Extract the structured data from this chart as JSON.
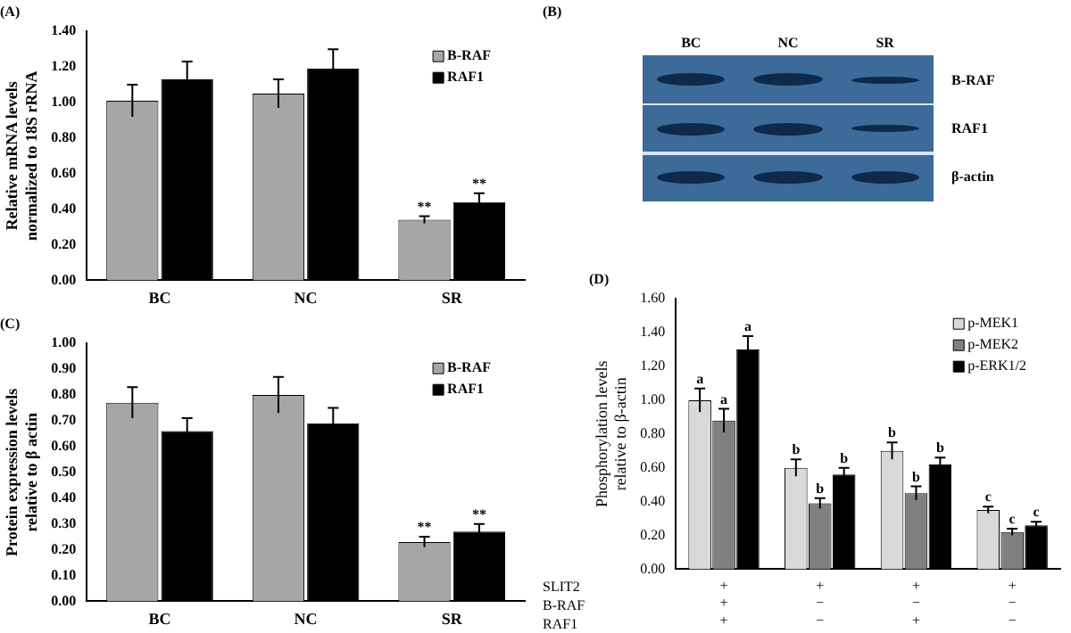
{
  "chart_data": [
    {
      "type": "bar",
      "title": "(A)",
      "ylabel": "Relative mRNA levels\nnormalized to 18S rRNA",
      "categories": [
        "BC",
        "NC",
        "SR"
      ],
      "legend": "top right",
      "ylim": [
        0,
        1.4
      ],
      "yticks": [
        {
          "value": 0,
          "label": "0.00"
        },
        {
          "value": 0.2,
          "label": "0.20"
        },
        {
          "value": 0.4,
          "label": "0.40"
        },
        {
          "value": 0.6,
          "label": "0.60"
        },
        {
          "value": 0.8,
          "label": "0.80"
        },
        {
          "value": 1,
          "label": "1.00"
        },
        {
          "value": 1.2,
          "label": "1.20"
        },
        {
          "value": 1.4,
          "label": "1.40"
        }
      ],
      "series": [
        {
          "name": "B-RAF",
          "color": "#a6a6a6",
          "values": [
            1.01,
            1.05,
            0.34
          ],
          "errors": [
            0.09,
            0.08,
            0.02
          ],
          "value_labels": [
            null,
            null,
            "**"
          ]
        },
        {
          "name": "RAF1",
          "color": "#000000",
          "values": [
            1.13,
            1.19,
            0.44
          ],
          "errors": [
            0.1,
            0.11,
            0.05
          ],
          "value_labels": [
            null,
            null,
            "**"
          ]
        }
      ]
    },
    {
      "type": "other",
      "title": "(B)",
      "categories": [
        "BC",
        "NC",
        "SR"
      ],
      "annotations": [
        "B-RAF",
        "RAF1",
        "β-actin"
      ]
    },
    {
      "type": "bar",
      "title": "(C)",
      "ylabel": "Protein expression levels\nrelative to β actin",
      "categories": [
        "BC",
        "NC",
        "SR"
      ],
      "legend": "top right",
      "ylim": [
        0,
        1
      ],
      "yticks": [
        {
          "value": 0,
          "label": "0.00"
        },
        {
          "value": 0.1,
          "label": "0.10"
        },
        {
          "value": 0.2,
          "label": "0.20"
        },
        {
          "value": 0.3,
          "label": "0.30"
        },
        {
          "value": 0.4,
          "label": "0.40"
        },
        {
          "value": 0.5,
          "label": "0.50"
        },
        {
          "value": 0.6,
          "label": "0.60"
        },
        {
          "value": 0.7,
          "label": "0.70"
        },
        {
          "value": 0.8,
          "label": "0.80"
        },
        {
          "value": 0.9,
          "label": "0.90"
        },
        {
          "value": 1,
          "label": "1.00"
        }
      ],
      "series": [
        {
          "name": "B-RAF",
          "color": "#a6a6a6",
          "values": [
            0.77,
            0.8,
            0.23
          ],
          "errors": [
            0.06,
            0.07,
            0.02
          ],
          "value_labels": [
            null,
            null,
            "**"
          ]
        },
        {
          "name": "RAF1",
          "color": "#000000",
          "values": [
            0.66,
            0.69,
            0.27
          ],
          "errors": [
            0.05,
            0.06,
            0.03
          ],
          "value_labels": [
            null,
            null,
            "**"
          ]
        }
      ]
    },
    {
      "type": "bar",
      "title": "(D)",
      "ylabel": "Phosphorylation levels\nrelative to β-actin",
      "categories": [
        "+\n+\n+",
        "+\n−\n−",
        "+\n−\n+",
        "+\n−\n−"
      ],
      "annotations": [
        "SLIT2",
        "B-RAF",
        "RAF1"
      ],
      "legend": "top right",
      "ylim": [
        0,
        1.6
      ],
      "yticks": [
        {
          "value": 0,
          "label": "0.00"
        },
        {
          "value": 0.2,
          "label": "0.20"
        },
        {
          "value": 0.4,
          "label": "0.40"
        },
        {
          "value": 0.6,
          "label": "0.60"
        },
        {
          "value": 0.8,
          "label": "0.80"
        },
        {
          "value": 1,
          "label": "1.00"
        },
        {
          "value": 1.2,
          "label": "1.20"
        },
        {
          "value": 1.4,
          "label": "1.40"
        },
        {
          "value": 1.6,
          "label": "1.60"
        }
      ],
      "series": [
        {
          "name": "p-MEK1",
          "color": "#d9d9d9",
          "values": [
            1.0,
            0.6,
            0.7,
            0.35
          ],
          "errors": [
            0.07,
            0.05,
            0.05,
            0.02
          ],
          "value_labels": [
            "a",
            "b",
            "b",
            "c"
          ]
        },
        {
          "name": "p-MEK2",
          "color": "#808080",
          "values": [
            0.88,
            0.39,
            0.45,
            0.22
          ],
          "errors": [
            0.07,
            0.03,
            0.04,
            0.02
          ],
          "value_labels": [
            "a",
            "b",
            "b",
            "c"
          ]
        },
        {
          "name": "p-ERK1/2",
          "color": "#000000",
          "values": [
            1.3,
            0.56,
            0.62,
            0.26
          ],
          "errors": [
            0.08,
            0.04,
            0.04,
            0.02
          ],
          "value_labels": [
            "a",
            "b",
            "b",
            "c"
          ]
        }
      ]
    }
  ]
}
